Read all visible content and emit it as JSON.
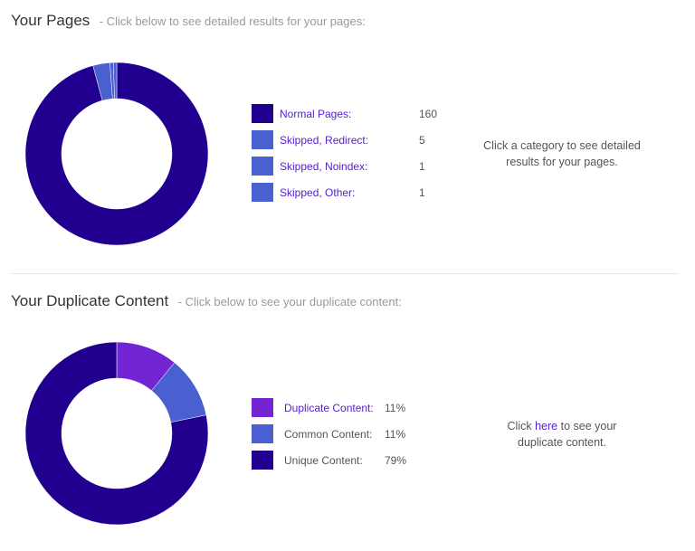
{
  "colors": {
    "dark": "#22008f",
    "light": "#4a5fd0",
    "purple": "#7325d3"
  },
  "pages": {
    "title": "Your Pages",
    "subtitle": "- Click below to see detailed results for your pages:",
    "items": [
      {
        "label": "Normal Pages:",
        "value": "160",
        "count": 160,
        "color": "#22008f"
      },
      {
        "label": "Skipped, Redirect:",
        "value": "5",
        "count": 5,
        "color": "#4a5fd0"
      },
      {
        "label": "Skipped, Noindex:",
        "value": "1",
        "count": 1,
        "color": "#4a5fd0"
      },
      {
        "label": "Skipped, Other:",
        "value": "1",
        "count": 1,
        "color": "#4a5fd0"
      }
    ],
    "note": "Click a category to see detailed results for your pages."
  },
  "duplicate": {
    "title": "Your Duplicate Content",
    "subtitle": "- Click below to see your duplicate content:",
    "items": [
      {
        "label": "Duplicate Content:",
        "value": "11%",
        "count": 11,
        "color": "#7325d3"
      },
      {
        "label": "Common Content:",
        "value": "11%",
        "count": 11,
        "color": "#4a5fd0"
      },
      {
        "label": "Unique Content:",
        "value": "79%",
        "count": 79,
        "color": "#22008f"
      }
    ],
    "note_pre": "Click ",
    "note_link": "here",
    "note_post": " to see your duplicate content."
  }
}
